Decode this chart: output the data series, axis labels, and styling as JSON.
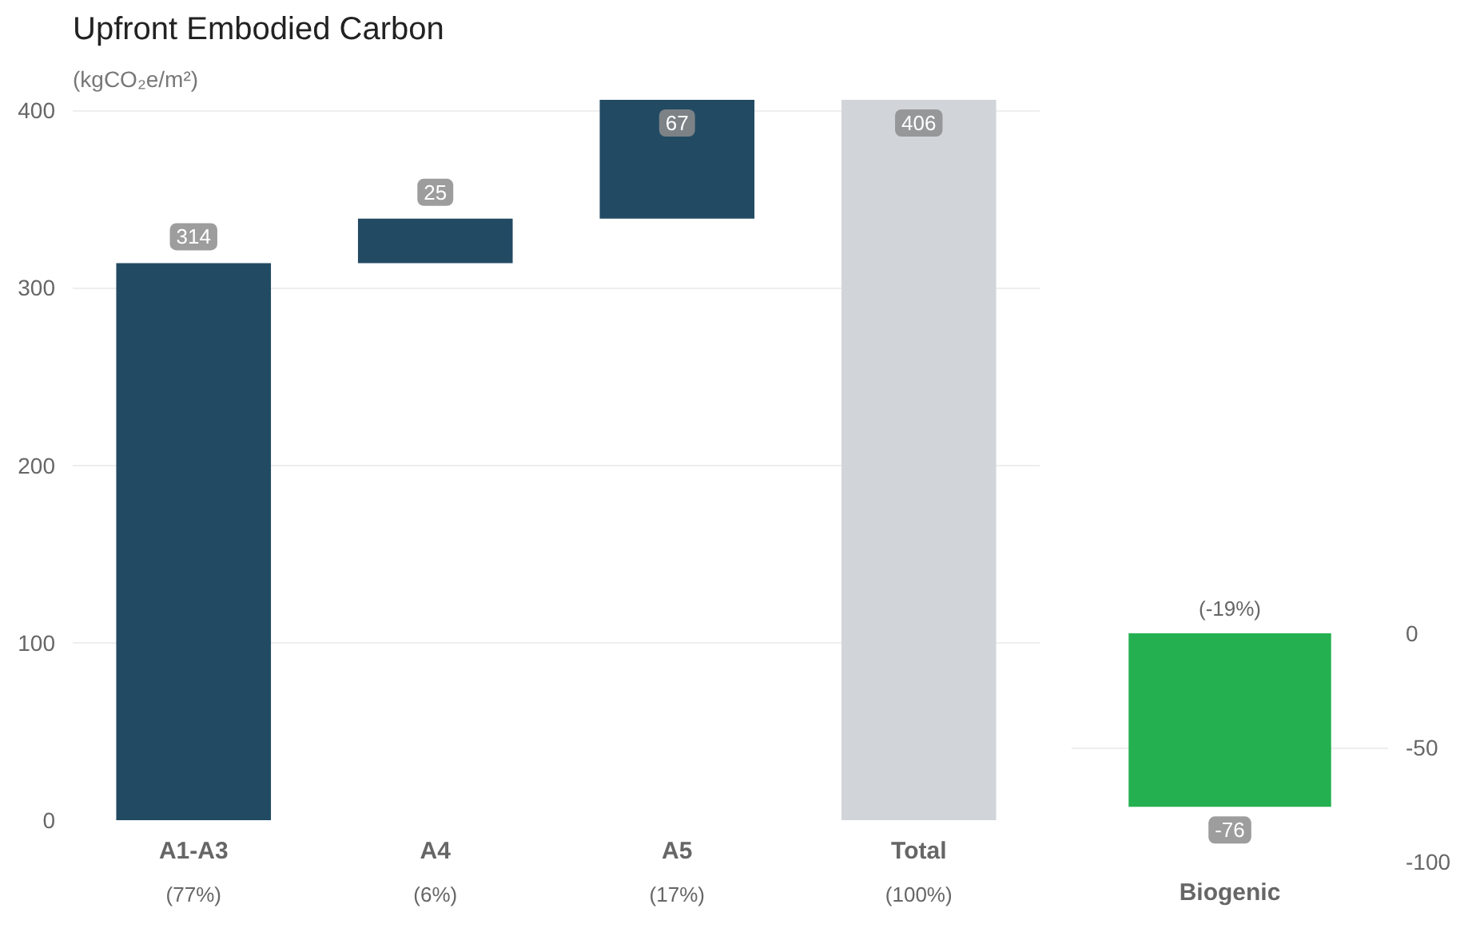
{
  "chart_data": [
    {
      "type": "bar",
      "title": "Upfront Embodied Carbon",
      "subtitle": "(kgCO₂e/m²)",
      "categories": [
        "A1-A3",
        "A4",
        "A5",
        "Total"
      ],
      "values": [
        314,
        25,
        67,
        406
      ],
      "base": [
        0,
        314,
        339,
        0
      ],
      "colors": [
        "#224a63",
        "#224a63",
        "#224a63",
        "#d1d5d9"
      ],
      "ylim": [
        0,
        406
      ],
      "yticks": [
        0,
        100,
        200,
        300,
        400
      ],
      "grid": "y",
      "data_labels": true,
      "annotations": [
        "(77%)",
        "(6%)",
        "(17%)",
        "(100%)"
      ]
    },
    {
      "type": "bar",
      "categories": [
        "Biogenic"
      ],
      "values": [
        -76
      ],
      "colors": [
        "#24b050"
      ],
      "ylim": [
        -100,
        0
      ],
      "yticks": [
        0,
        -50,
        -100
      ],
      "grid": "y",
      "data_labels": true,
      "annotations": [
        "(-19%)"
      ]
    }
  ]
}
